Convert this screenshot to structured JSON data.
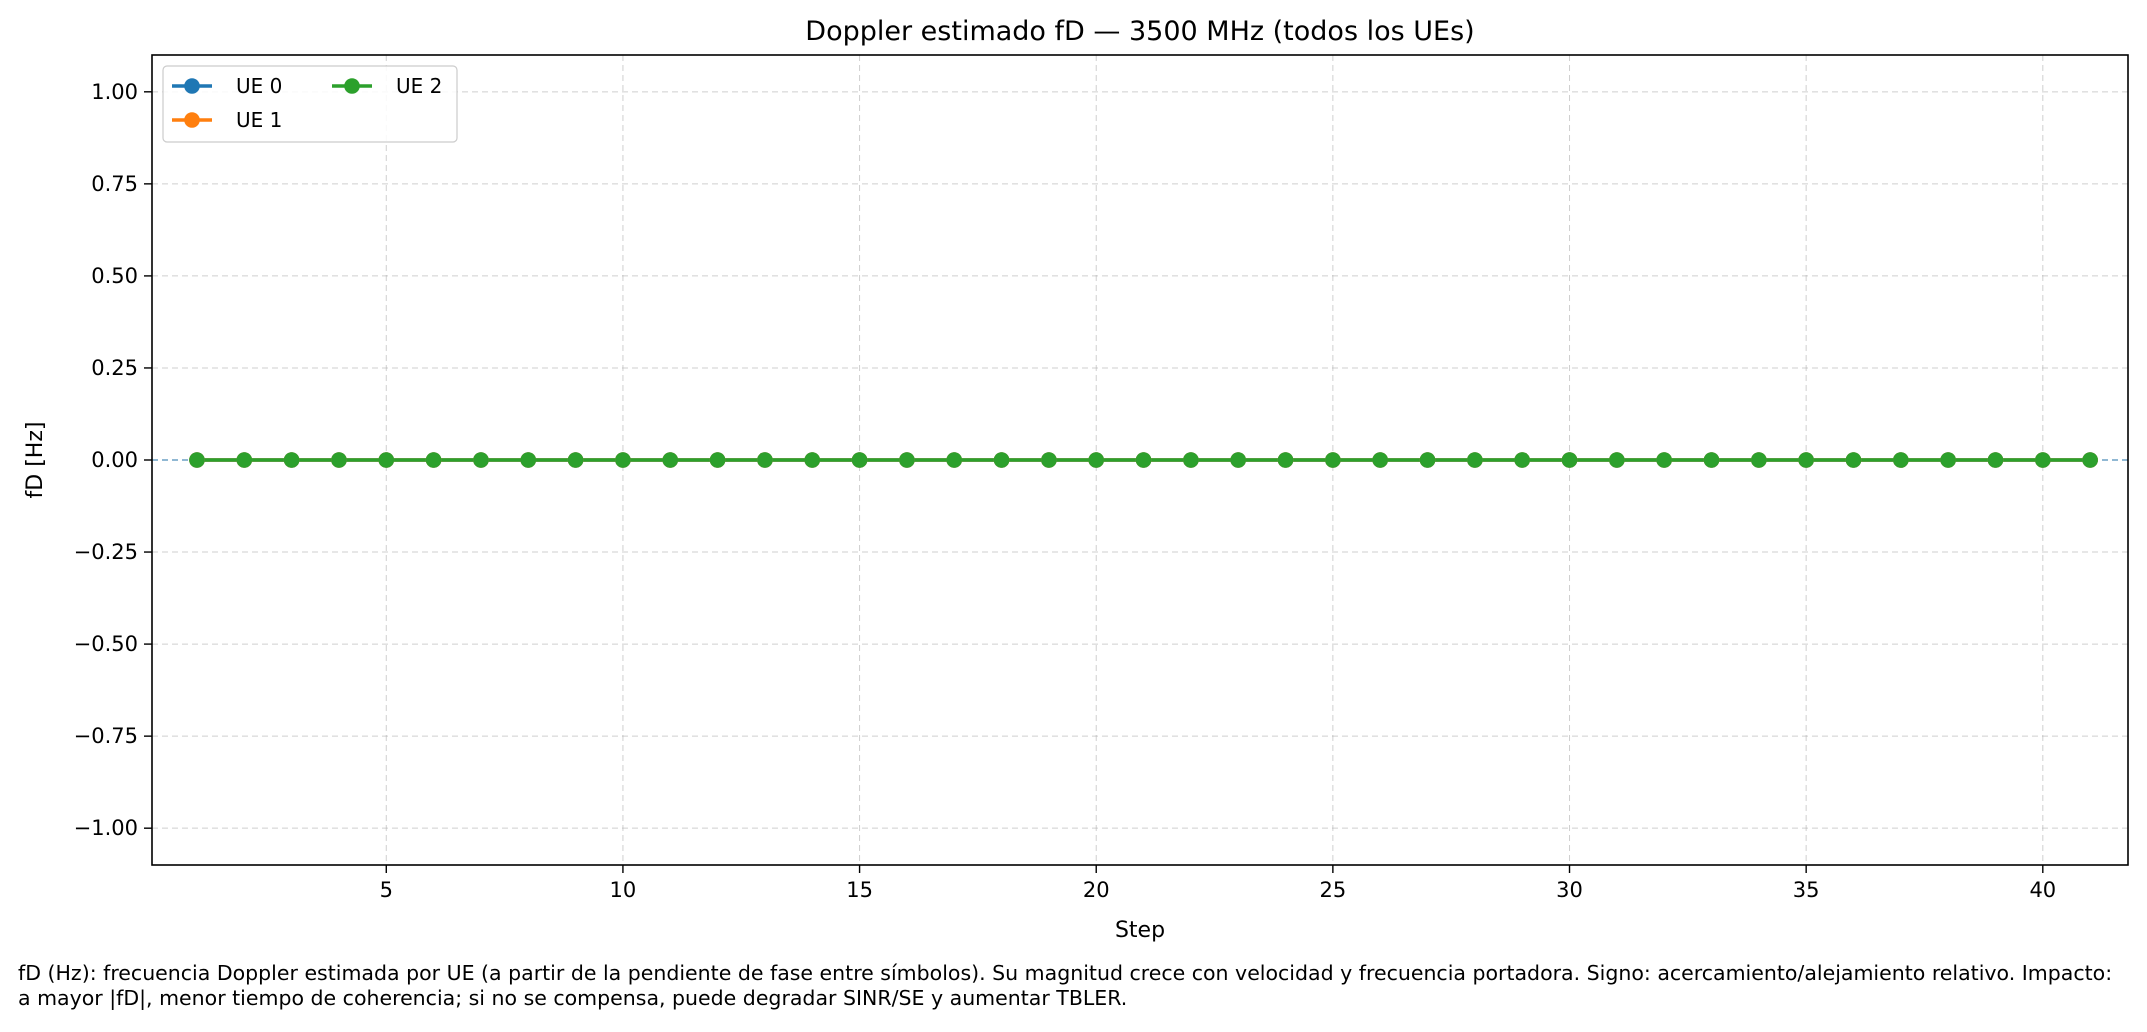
{
  "chart_data": {
    "type": "line",
    "title": "Doppler estimado fD — 3500 MHz (todos los UEs)",
    "xlabel": "Step",
    "ylabel": "fD [Hz]",
    "xlim": [
      0.05,
      41.8
    ],
    "ylim": [
      -1.1,
      1.1
    ],
    "xticks": [
      5,
      10,
      15,
      20,
      25,
      30,
      35,
      40
    ],
    "yticks": [
      1.0,
      0.75,
      0.5,
      0.25,
      0.0,
      -0.25,
      -0.5,
      -0.75,
      -1.0
    ],
    "ytick_labels": [
      "1.00",
      "0.75",
      "0.50",
      "0.25",
      "0.00",
      "−0.25",
      "−0.50",
      "−0.75",
      "−1.00"
    ],
    "grid": true,
    "legend_position": "upper-left",
    "reference_line": {
      "y": 0,
      "style": "dashed",
      "color": "#1f77b4"
    },
    "x": [
      1,
      2,
      3,
      4,
      5,
      6,
      7,
      8,
      9,
      10,
      11,
      12,
      13,
      14,
      15,
      16,
      17,
      18,
      19,
      20,
      21,
      22,
      23,
      24,
      25,
      26,
      27,
      28,
      29,
      30,
      31,
      32,
      33,
      34,
      35,
      36,
      37,
      38,
      39,
      40,
      41
    ],
    "series": [
      {
        "name": "UE 0",
        "color": "#1f77b4",
        "values": [
          0,
          0,
          0,
          0,
          0,
          0,
          0,
          0,
          0,
          0,
          0,
          0,
          0,
          0,
          0,
          0,
          0,
          0,
          0,
          0,
          0,
          0,
          0,
          0,
          0,
          0,
          0,
          0,
          0,
          0,
          0,
          0,
          0,
          0,
          0,
          0,
          0,
          0,
          0,
          0,
          0
        ]
      },
      {
        "name": "UE 1",
        "color": "#ff7f0e",
        "values": [
          0,
          0,
          0,
          0,
          0,
          0,
          0,
          0,
          0,
          0,
          0,
          0,
          0,
          0,
          0,
          0,
          0,
          0,
          0,
          0,
          0,
          0,
          0,
          0,
          0,
          0,
          0,
          0,
          0,
          0,
          0,
          0,
          0,
          0,
          0,
          0,
          0,
          0,
          0,
          0,
          0
        ]
      },
      {
        "name": "UE 2",
        "color": "#2ca02c",
        "values": [
          0,
          0,
          0,
          0,
          0,
          0,
          0,
          0,
          0,
          0,
          0,
          0,
          0,
          0,
          0,
          0,
          0,
          0,
          0,
          0,
          0,
          0,
          0,
          0,
          0,
          0,
          0,
          0,
          0,
          0,
          0,
          0,
          0,
          0,
          0,
          0,
          0,
          0,
          0,
          0,
          0
        ]
      }
    ]
  },
  "caption": "fD (Hz): frecuencia Doppler estimada por UE (a partir de la pendiente de fase entre símbolos). Su magnitud crece con velocidad y frecuencia portadora. Signo: acercamiento/alejamiento relativo. Impacto: a mayor |fD|, menor tiempo de coherencia; si no se compensa, puede degradar SINR/SE y aumentar TBLER."
}
